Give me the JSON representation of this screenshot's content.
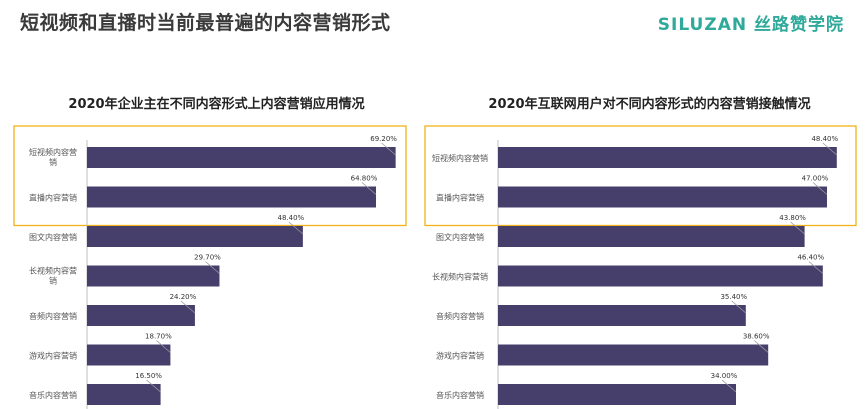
{
  "page": {
    "title": "短视频和直播时当前最普遍的内容营销形式",
    "brand": "SILUZAN 丝路赞学院"
  },
  "colors": {
    "bar": "#463f6c",
    "highlight": "#f2b217",
    "text": "#333333",
    "label": "#555555"
  },
  "chart_data": [
    {
      "type": "bar",
      "orientation": "horizontal",
      "title": "2020年企业主在不同内容形式上内容营销应用情况",
      "categories": [
        "短视频内容营销",
        "直播内容营销",
        "图文内容营销",
        "长视频内容营销",
        "音频内容营销",
        "游戏内容营销",
        "音乐内容营销"
      ],
      "values": [
        69.2,
        64.8,
        48.4,
        29.7,
        24.2,
        18.7,
        16.5
      ],
      "value_labels": [
        "69.20%",
        "64.80%",
        "48.40%",
        "29.70%",
        "24.20%",
        "18.70%",
        "16.50%"
      ],
      "highlighted_categories": [
        "短视频内容营销",
        "直播内容营销"
      ]
    },
    {
      "type": "bar",
      "orientation": "horizontal",
      "title": "2020年互联网用户对不同内容形式的内容营销接触情况",
      "categories": [
        "短视频内容营销",
        "直播内容营销",
        "图文内容营销",
        "长视频内容营销",
        "音频内容营销",
        "游戏内容营销",
        "音乐内容营销"
      ],
      "values": [
        48.4,
        47.0,
        43.8,
        46.4,
        35.4,
        38.6,
        34.0
      ],
      "value_labels": [
        "48.40%",
        "47.00%",
        "43.80%",
        "46.40%",
        "35.40%",
        "38.60%",
        "34.00%"
      ],
      "highlighted_categories": [
        "短视频内容营销",
        "直播内容营销"
      ]
    }
  ]
}
